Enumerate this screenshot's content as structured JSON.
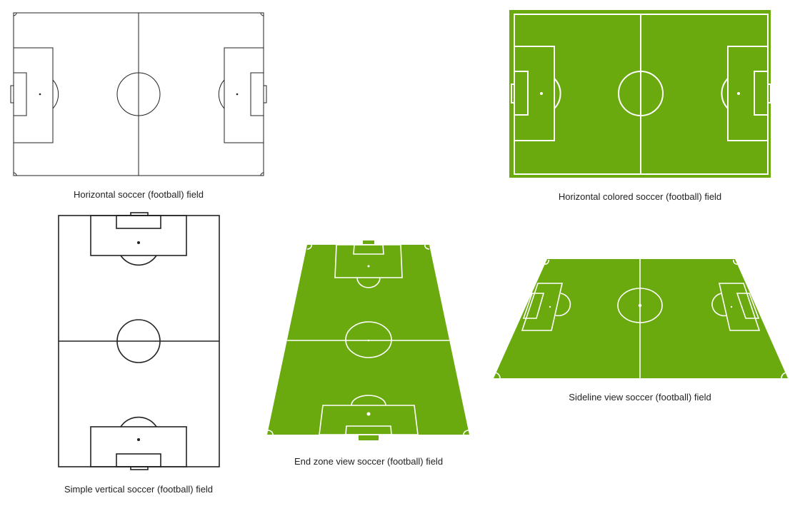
{
  "colors": {
    "line_dark": "#222222",
    "pitch_green": "#6aaa0e",
    "pitch_line": "#ffffff"
  },
  "fields": {
    "horizontal": {
      "caption": "Horizontal soccer (football) field"
    },
    "horizontal_colored": {
      "caption": "Horizontal colored soccer (football) field"
    },
    "vertical": {
      "caption": "Simple vertical soccer (football) field"
    },
    "end_zone": {
      "caption": "End zone view soccer (football) field"
    },
    "sideline": {
      "caption": "Sideline view soccer (football) field"
    }
  }
}
